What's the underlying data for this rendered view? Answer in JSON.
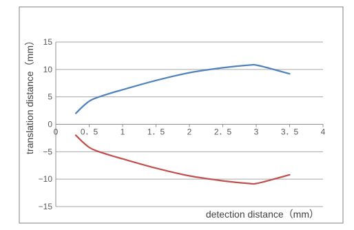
{
  "chart_data": {
    "type": "line",
    "title": "",
    "xlabel": "detection distance（mm）",
    "ylabel": "translation distance（mm）",
    "xlim": [
      0,
      4
    ],
    "ylim": [
      -15,
      15
    ],
    "x_ticks": [
      0,
      0.5,
      1,
      1.5,
      2,
      2.5,
      3,
      3.5,
      4
    ],
    "x_tick_labels": [
      "0",
      "0．5",
      "1",
      "1．5",
      "2",
      "2．5",
      "3",
      "3．5",
      "4"
    ],
    "y_ticks": [
      15,
      10,
      5,
      0,
      -5,
      -10,
      -15
    ],
    "y_tick_labels": [
      "15",
      "10",
      "5",
      "0",
      "−5",
      "−10",
      "−15"
    ],
    "grid": true,
    "legend": "none",
    "series": [
      {
        "color": "#4f81bd",
        "x": [
          0.3,
          0.4,
          0.5,
          0.6,
          0.8,
          1.0,
          1.5,
          2.0,
          2.5,
          2.9,
          3.0,
          3.2,
          3.5
        ],
        "y": [
          2.0,
          3.2,
          4.2,
          4.8,
          5.6,
          6.3,
          8.0,
          9.4,
          10.3,
          10.8,
          10.8,
          10.2,
          9.2
        ]
      },
      {
        "color": "#c0504d",
        "x": [
          0.3,
          0.4,
          0.5,
          0.6,
          0.8,
          1.0,
          1.5,
          2.0,
          2.5,
          2.9,
          3.0,
          3.2,
          3.5
        ],
        "y": [
          -2.0,
          -3.2,
          -4.2,
          -4.8,
          -5.6,
          -6.3,
          -8.0,
          -9.4,
          -10.3,
          -10.8,
          -10.8,
          -10.2,
          -9.2
        ]
      }
    ]
  }
}
